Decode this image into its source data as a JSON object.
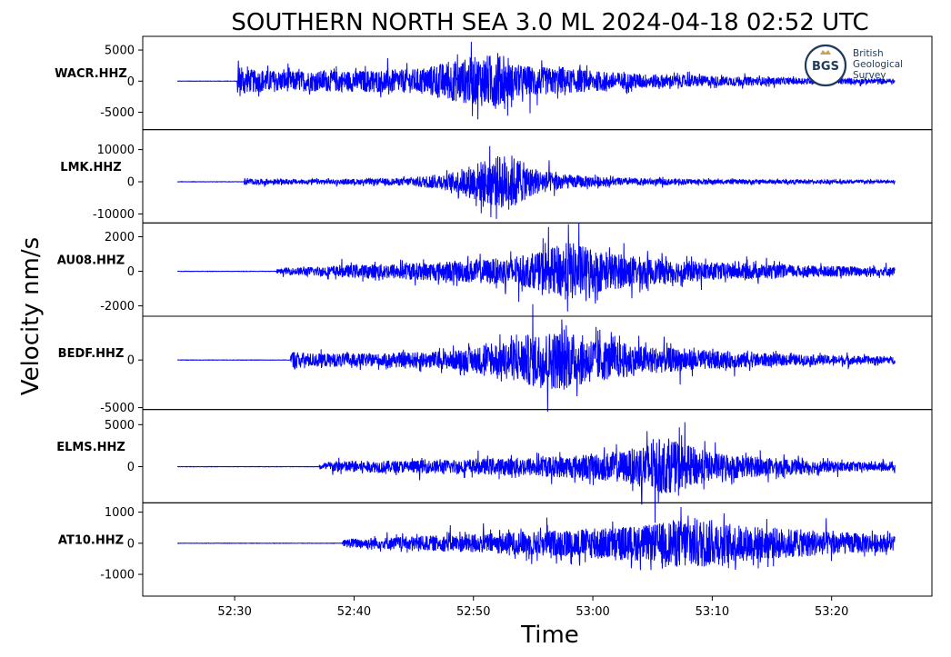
{
  "chart_data": {
    "type": "line",
    "title": "SOUTHERN NORTH SEA 3.0 ML   2024-04-18 02:52 UTC",
    "xlabel": "Time",
    "ylabel": "Velocity nm/s",
    "x_ticks": [
      "52:30",
      "52:40",
      "52:50",
      "53:00",
      "53:10",
      "53:20"
    ],
    "x_tick_seconds": [
      30,
      40,
      50,
      60,
      70,
      80
    ],
    "xlim_seconds": [
      22.3,
      88.4
    ],
    "trace_start_seconds": 25.2,
    "trace_end_seconds": 85.3,
    "line_color": "#0000ff",
    "grid": false,
    "logo": {
      "abbrev": "BGS",
      "lines": [
        "British",
        "Geological",
        "Survey"
      ]
    },
    "panels": [
      {
        "station": "WACR.HHZ",
        "ylim": [
          -7800,
          7200
        ],
        "yticks": [
          5000,
          0,
          -5000
        ],
        "ytick_labels": [
          "5000",
          "0",
          "-5000"
        ],
        "onset_seconds": 30.2,
        "envelope": [
          [
            30.2,
            3800
          ],
          [
            31.0,
            2500
          ],
          [
            35,
            2200
          ],
          [
            40,
            2300
          ],
          [
            45,
            2600
          ],
          [
            48,
            4200
          ],
          [
            50,
            5200
          ],
          [
            52,
            6000
          ],
          [
            53,
            3800
          ],
          [
            55,
            3200
          ],
          [
            60,
            2200
          ],
          [
            65,
            1500
          ],
          [
            70,
            1100
          ],
          [
            75,
            800
          ],
          [
            85.3,
            500
          ]
        ]
      },
      {
        "station": "LMK.HHZ",
        "ylim": [
          -12800,
          16200
        ],
        "yticks": [
          10000,
          0,
          -10000
        ],
        "ytick_labels": [
          "10000",
          "0",
          "-10000"
        ],
        "onset_seconds": 30.8,
        "envelope": [
          [
            30.8,
            1500
          ],
          [
            32,
            1100
          ],
          [
            38,
            1000
          ],
          [
            44,
            1500
          ],
          [
            48,
            3500
          ],
          [
            51,
            9500
          ],
          [
            53,
            12000
          ],
          [
            55,
            5500
          ],
          [
            58,
            2800
          ],
          [
            62,
            1600
          ],
          [
            70,
            1000
          ],
          [
            85.3,
            700
          ]
        ]
      },
      {
        "station": "AU08.HHZ",
        "ylim": [
          -2600,
          2800
        ],
        "yticks": [
          2000,
          0,
          -2000
        ],
        "ytick_labels": [
          "2000",
          "0",
          "-2000"
        ],
        "onset_seconds": 33.5,
        "envelope": [
          [
            33.5,
            150
          ],
          [
            35,
            300
          ],
          [
            40,
            500
          ],
          [
            46,
            700
          ],
          [
            52,
            1000
          ],
          [
            55,
            1300
          ],
          [
            58,
            2300
          ],
          [
            61,
            1500
          ],
          [
            65,
            1000
          ],
          [
            70,
            700
          ],
          [
            78,
            450
          ],
          [
            85.3,
            350
          ]
        ]
      },
      {
        "station": "BEDF.HHZ",
        "ylim": [
          -5200,
          4600
        ],
        "yticks": [
          0,
          -5000
        ],
        "ytick_labels": [
          "0",
          "-5000"
        ],
        "onset_seconds": 34.7,
        "envelope": [
          [
            34.7,
            1400
          ],
          [
            36,
            1000
          ],
          [
            42,
            900
          ],
          [
            48,
            1300
          ],
          [
            52,
            2300
          ],
          [
            55,
            3800
          ],
          [
            57,
            4200
          ],
          [
            60,
            3200
          ],
          [
            64,
            2000
          ],
          [
            70,
            1300
          ],
          [
            76,
            800
          ],
          [
            85.3,
            500
          ]
        ]
      },
      {
        "station": "ELMS.HHZ",
        "ylim": [
          -4300,
          6800
        ],
        "yticks": [
          5000,
          0
        ],
        "ytick_labels": [
          "5000",
          "0"
        ],
        "onset_seconds": 37.1,
        "envelope": [
          [
            37.1,
            400
          ],
          [
            38,
            900
          ],
          [
            45,
            1000
          ],
          [
            52,
            1300
          ],
          [
            58,
            1800
          ],
          [
            63,
            2600
          ],
          [
            65,
            4500
          ],
          [
            67,
            4000
          ],
          [
            70,
            2200
          ],
          [
            75,
            1400
          ],
          [
            80,
            900
          ],
          [
            85.3,
            600
          ]
        ]
      },
      {
        "station": "AT10.HHZ",
        "ylim": [
          -1700,
          1300
        ],
        "yticks": [
          1000,
          0,
          -1000
        ],
        "ytick_labels": [
          "1000",
          "0",
          "-1000"
        ],
        "onset_seconds": 39.0,
        "envelope": [
          [
            25.2,
            15
          ],
          [
            38.5,
            30
          ],
          [
            39.5,
            200
          ],
          [
            45,
            300
          ],
          [
            52,
            450
          ],
          [
            58,
            600
          ],
          [
            65,
            800
          ],
          [
            68,
            1150
          ],
          [
            72,
            800
          ],
          [
            76,
            650
          ],
          [
            80,
            500
          ],
          [
            85.3,
            350
          ]
        ]
      }
    ]
  }
}
